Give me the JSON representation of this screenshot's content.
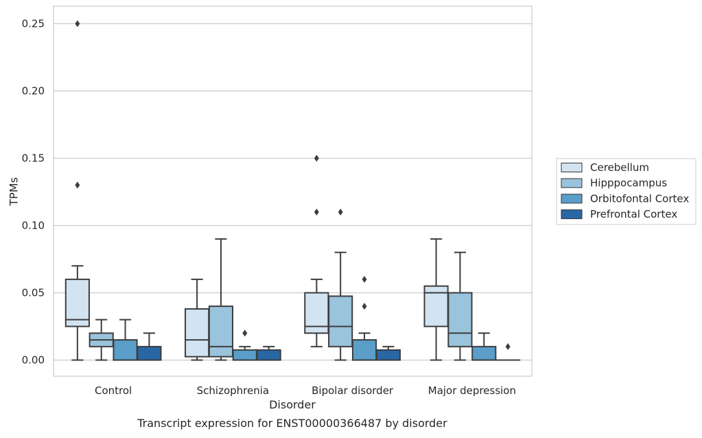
{
  "chart_data": {
    "type": "box",
    "caption": "Transcript expression for ENST00000366487 by disorder",
    "xlabel": "Disorder",
    "ylabel": "TPMs",
    "ylim": [
      -0.012,
      0.263
    ],
    "yticks": [
      0.0,
      0.05,
      0.1,
      0.15,
      0.2,
      0.25
    ],
    "ytick_labels": [
      "0.00",
      "0.05",
      "0.10",
      "0.15",
      "0.20",
      "0.25"
    ],
    "categories": [
      "Control",
      "Schizophrenia",
      "Bipolar disorder",
      "Major depression"
    ],
    "grid": "horizontal",
    "legend_position": "right",
    "series": [
      {
        "name": "Cerebellum",
        "color": "#d2e3f1",
        "boxes": [
          {
            "whislo": 0.0,
            "q1": 0.025,
            "med": 0.03,
            "q3": 0.06,
            "whishi": 0.07,
            "fliers": [
              0.13,
              0.25
            ]
          },
          {
            "whislo": 0.0,
            "q1": 0.0025,
            "med": 0.015,
            "q3": 0.038,
            "whishi": 0.06,
            "fliers": []
          },
          {
            "whislo": 0.01,
            "q1": 0.02,
            "med": 0.025,
            "q3": 0.05,
            "whishi": 0.06,
            "fliers": [
              0.11,
              0.15
            ]
          },
          {
            "whislo": 0.0,
            "q1": 0.025,
            "med": 0.05,
            "q3": 0.055,
            "whishi": 0.09,
            "fliers": []
          }
        ]
      },
      {
        "name": "Hipppocampus",
        "color": "#9ac3dc",
        "boxes": [
          {
            "whislo": 0.0,
            "q1": 0.01,
            "med": 0.015,
            "q3": 0.02,
            "whishi": 0.03,
            "fliers": []
          },
          {
            "whislo": 0.0,
            "q1": 0.0025,
            "med": 0.01,
            "q3": 0.04,
            "whishi": 0.09,
            "fliers": []
          },
          {
            "whislo": 0.0,
            "q1": 0.01,
            "med": 0.025,
            "q3": 0.0475,
            "whishi": 0.08,
            "fliers": [
              0.11
            ]
          },
          {
            "whislo": 0.0,
            "q1": 0.01,
            "med": 0.02,
            "q3": 0.05,
            "whishi": 0.08,
            "fliers": []
          }
        ]
      },
      {
        "name": "Orbitofontal Cortex",
        "color": "#5a9ec9",
        "boxes": [
          {
            "whislo": 0.0,
            "q1": 0.0,
            "med": 0.0,
            "q3": 0.015,
            "whishi": 0.03,
            "fliers": []
          },
          {
            "whislo": 0.0,
            "q1": 0.0,
            "med": 0.0,
            "q3": 0.0075,
            "whishi": 0.01,
            "fliers": [
              0.02
            ]
          },
          {
            "whislo": 0.0,
            "q1": 0.0,
            "med": 0.0,
            "q3": 0.015,
            "whishi": 0.02,
            "fliers": [
              0.04,
              0.06
            ]
          },
          {
            "whislo": 0.0,
            "q1": 0.0,
            "med": 0.0,
            "q3": 0.01,
            "whishi": 0.02,
            "fliers": []
          }
        ]
      },
      {
        "name": "Prefrontal Cortex",
        "color": "#2966a6",
        "boxes": [
          {
            "whislo": 0.0,
            "q1": 0.0,
            "med": 0.0,
            "q3": 0.01,
            "whishi": 0.02,
            "fliers": []
          },
          {
            "whislo": 0.0,
            "q1": 0.0,
            "med": 0.0,
            "q3": 0.0075,
            "whishi": 0.01,
            "fliers": []
          },
          {
            "whislo": 0.0,
            "q1": 0.0,
            "med": 0.0,
            "q3": 0.0075,
            "whishi": 0.01,
            "fliers": []
          },
          {
            "whislo": 0.0,
            "q1": 0.0,
            "med": 0.0,
            "q3": 0.0,
            "whishi": 0.0,
            "fliers": [
              0.01
            ]
          }
        ]
      }
    ]
  }
}
